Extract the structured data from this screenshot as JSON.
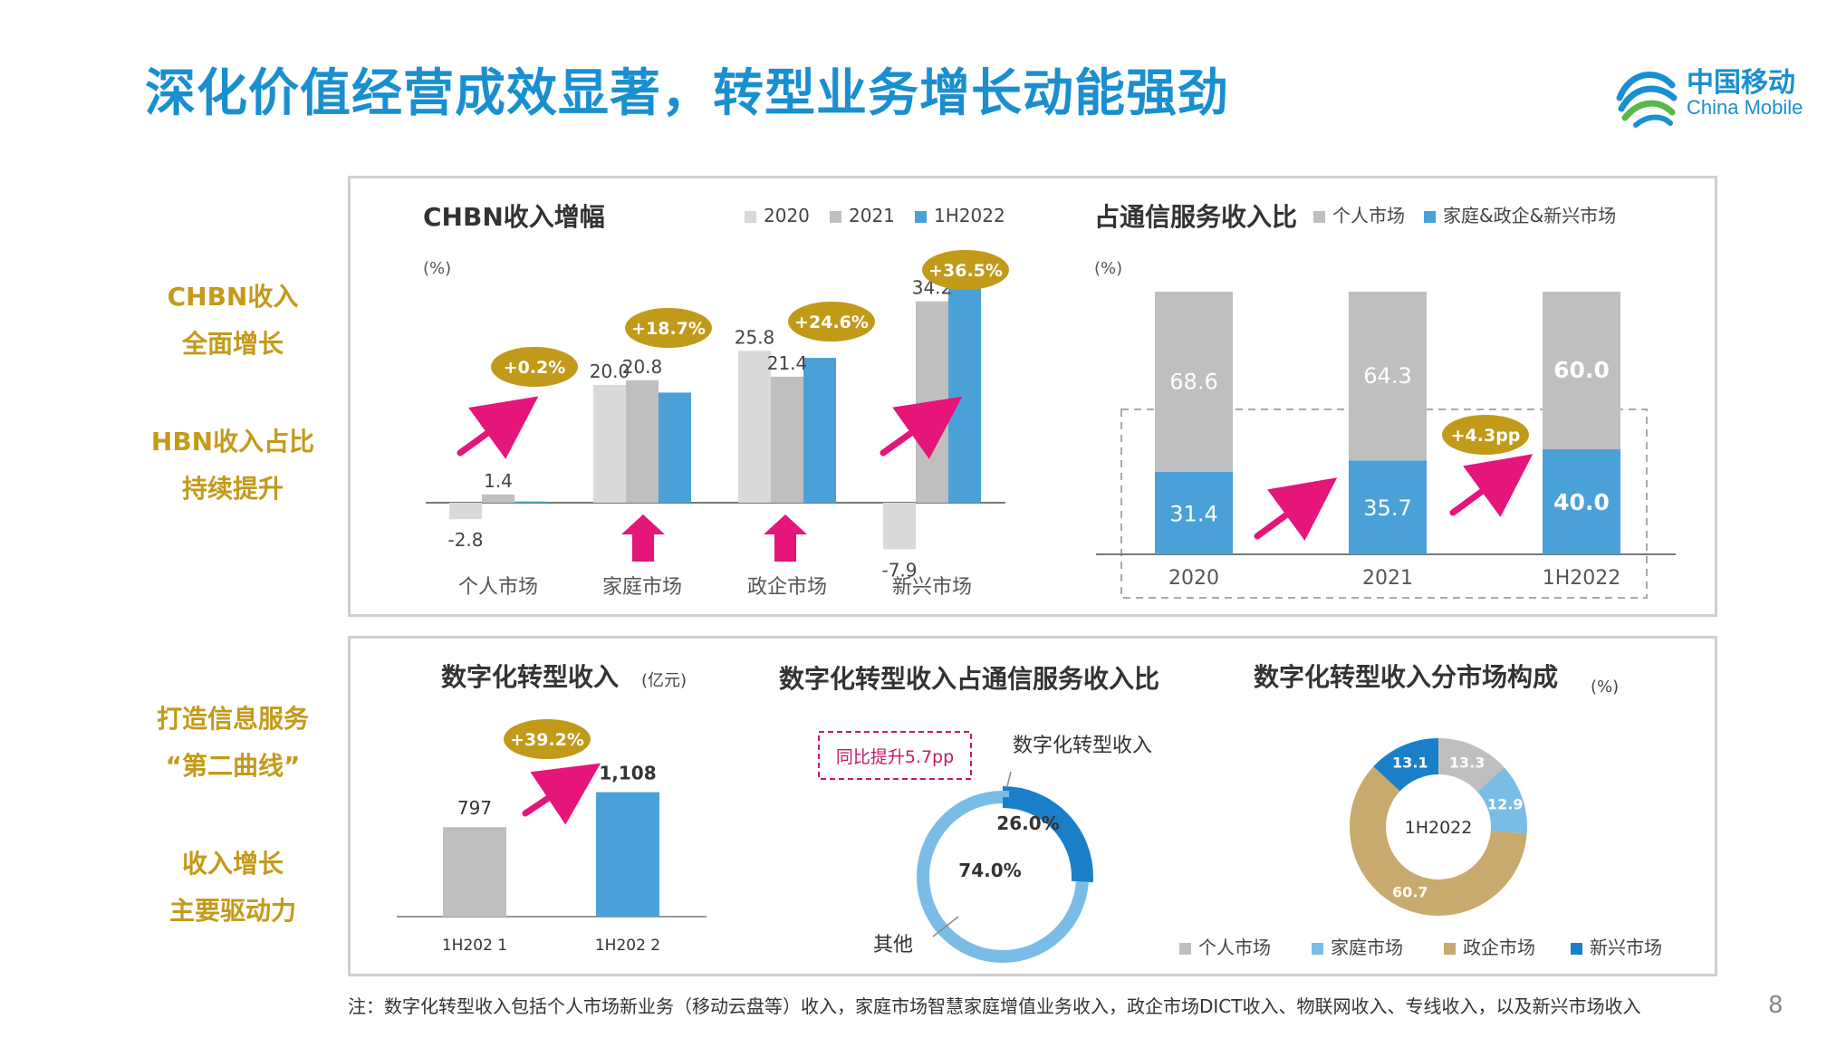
{
  "title": "深化价值经营成效显著，转型业务增长动能强劲",
  "logo": {
    "cn": "中国移动",
    "en": "China Mobile"
  },
  "page_number": "8",
  "footnote": "注：数字化转型收入包括个人市场新业务（移动云盘等）收入，家庭市场智慧家庭增值业务收入，政企市场DICT收入、物联网收入、专线收入，以及新兴市场收入",
  "side_labels": {
    "s1a": "CHBN收入",
    "s1b": "全面增长",
    "s2a": "HBN收入占比",
    "s2b": "持续提升",
    "s3a": "打造信息服务",
    "s3b": "“第二曲线”",
    "s4a": "收入增长",
    "s4b": "主要驱动力"
  },
  "colors": {
    "c2020": "#d9d9d9",
    "c2021": "#bfbfbf",
    "c1h2022": "#4aa1d8",
    "gold": "#c19a1a",
    "pink": "#e5157a",
    "blue_dark": "#1a7fc9",
    "blue_light": "#79bde6",
    "tan": "#c8a96e"
  },
  "chart_data": [
    {
      "type": "bar",
      "title": "CHBN收入增幅",
      "ylabel": "(%)",
      "categories": [
        "个人市场",
        "家庭市场",
        "政企市场",
        "新兴市场"
      ],
      "series": [
        {
          "name": "2020",
          "values": [
            -2.8,
            20.0,
            25.8,
            -7.9
          ]
        },
        {
          "name": "2021",
          "values": [
            1.4,
            20.8,
            21.4,
            34.2
          ]
        },
        {
          "name": "1H2022",
          "values": [
            0.2,
            18.7,
            24.6,
            36.5
          ]
        }
      ],
      "value_labels": {
        "2020": [
          "-2.8",
          "20.0",
          "25.8",
          "-7.9"
        ],
        "2021": [
          "1.4",
          "20.8",
          "21.4",
          "34.2"
        ],
        "1H2022": [
          "+0.2%",
          "+18.7%",
          "+24.6%",
          "+36.5%"
        ]
      },
      "legend_position": "top-right"
    },
    {
      "type": "bar",
      "title": "占通信服务收入比",
      "ylabel": "(%)",
      "stacked": true,
      "categories": [
        "2020",
        "2021",
        "1H2022"
      ],
      "series": [
        {
          "name": "家庭&政企&新兴市场",
          "values": [
            31.4,
            35.7,
            40.0
          ]
        },
        {
          "name": "个人市场",
          "values": [
            68.6,
            64.3,
            60.0
          ]
        }
      ],
      "value_labels": {
        "家庭&政企&新兴市场": [
          "31.4",
          "35.7",
          "40.0"
        ],
        "个人市场": [
          "68.6",
          "64.3",
          "60.0"
        ]
      },
      "annotation": "+4.3pp",
      "legend_position": "top-right"
    },
    {
      "type": "bar",
      "title": "数字化转型收入",
      "unit": "(亿元)",
      "categories": [
        "1H2021",
        "1H2022"
      ],
      "category_labels": [
        "1H202 1",
        "1H202 2"
      ],
      "values": [
        797,
        1108
      ],
      "value_labels": [
        "797",
        "1,108"
      ],
      "annotation": "+39.2%"
    },
    {
      "type": "pie",
      "title": "数字化转型收入占通信服务收入比",
      "labels": [
        "数字化转型收入",
        "其他"
      ],
      "values": [
        26.0,
        74.0
      ],
      "value_labels": [
        "26.0%",
        "74.0%"
      ],
      "annotation": "同比提升5.7pp"
    },
    {
      "type": "pie",
      "title": "数字化转型收入分市场构成",
      "unit": "(%)",
      "center_label": "1H2022",
      "labels": [
        "个人市场",
        "家庭市场",
        "政企市场",
        "新兴市场"
      ],
      "values": [
        13.3,
        12.9,
        60.7,
        13.1
      ],
      "value_labels": [
        "13.3",
        "12.9",
        "60.7",
        "13.1"
      ],
      "legend_position": "bottom"
    }
  ]
}
